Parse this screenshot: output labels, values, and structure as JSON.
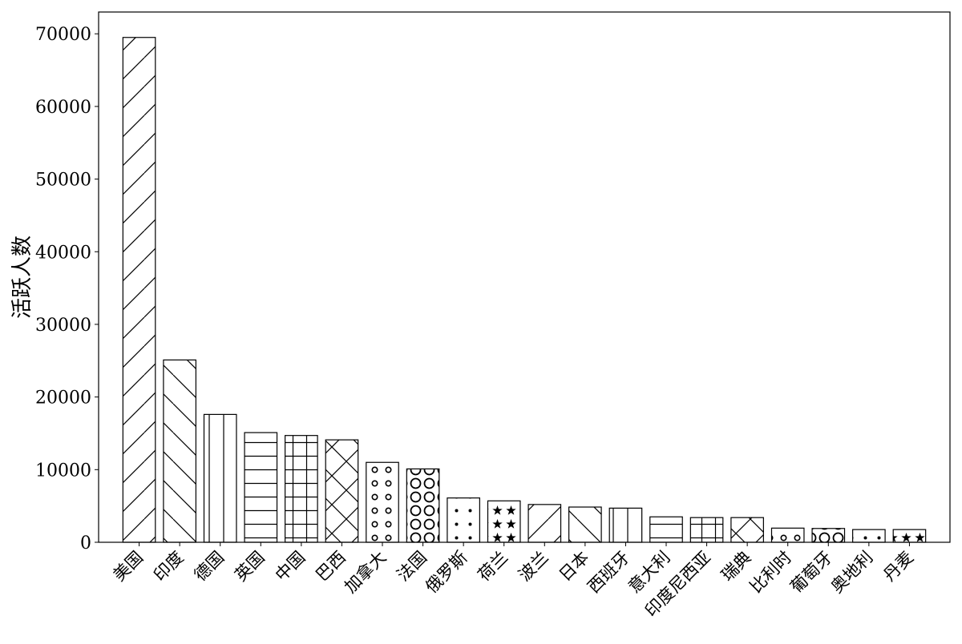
{
  "chart_data": {
    "type": "bar",
    "title": "",
    "xlabel": "",
    "ylabel": "活跃人数",
    "ylim": [
      0,
      73000
    ],
    "yticks": [
      0,
      10000,
      20000,
      30000,
      40000,
      50000,
      60000,
      70000
    ],
    "grid": false,
    "legend": "none",
    "categories": [
      "美国",
      "印度",
      "德国",
      "英国",
      "中国",
      "巴西",
      "加拿大",
      "法国",
      "俄罗斯",
      "荷兰",
      "波兰",
      "日本",
      "西班牙",
      "意大利",
      "印度尼西亚",
      "瑞典",
      "比利时",
      "葡萄牙",
      "奥地利",
      "丹麦"
    ],
    "values": [
      69500,
      25100,
      17600,
      15100,
      14700,
      14100,
      11000,
      10100,
      6100,
      5700,
      5200,
      4850,
      4700,
      3500,
      3400,
      3400,
      1950,
      1900,
      1750,
      1750
    ],
    "hatches": [
      "/",
      "\\",
      "|",
      "-",
      "+",
      "x",
      "o",
      "O",
      ".",
      "*",
      "/",
      "\\",
      "|",
      "-",
      "+",
      "x",
      "o",
      "O",
      ".",
      "*"
    ],
    "bar_fill": "#ffffff",
    "bar_edge": "#000000"
  }
}
